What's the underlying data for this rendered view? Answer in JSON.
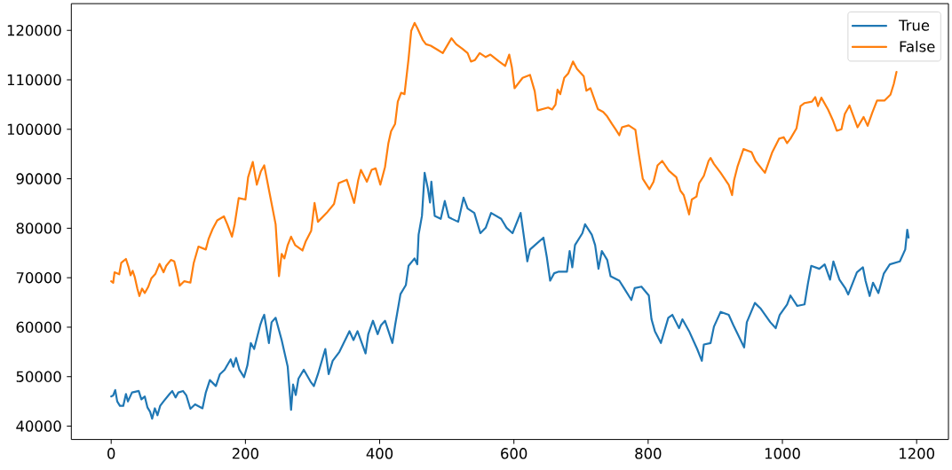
{
  "chart_data": {
    "type": "line",
    "series": [
      {
        "name": "True",
        "color": "#1f77b4",
        "x": [
          0,
          3,
          6,
          9,
          13,
          18,
          22,
          25,
          31,
          41,
          45,
          50,
          54,
          58,
          61,
          65,
          69,
          73,
          78,
          87,
          91,
          96,
          100,
          107,
          112,
          118,
          125,
          136,
          141,
          147,
          156,
          162,
          169,
          178,
          182,
          186,
          191,
          198,
          203,
          208,
          213,
          222,
          225,
          228,
          235,
          239,
          245,
          254,
          263,
          268,
          271,
          275,
          279,
          287,
          297,
          302,
          308,
          319,
          324,
          330,
          340,
          355,
          361,
          367,
          379,
          383,
          390,
          397,
          402,
          408,
          419,
          423,
          431,
          439,
          443,
          452,
          456,
          458,
          463,
          467,
          472,
          475,
          477,
          482,
          491,
          497,
          503,
          517,
          525,
          531,
          541,
          550,
          558,
          566,
          581,
          589,
          598,
          610,
          620,
          624,
          634,
          644,
          649,
          654,
          660,
          666,
          679,
          683,
          687,
          691,
          702,
          706,
          716,
          721,
          726,
          731,
          739,
          744,
          757,
          764,
          775,
          780,
          790,
          801,
          805,
          810,
          819,
          830,
          836,
          846,
          851,
          861,
          867,
          873,
          880,
          883,
          893,
          898,
          908,
          920,
          927,
          943,
          947,
          959,
          968,
          982,
          990,
          996,
          1007,
          1012,
          1022,
          1033,
          1038,
          1043,
          1055,
          1063,
          1071,
          1076,
          1082,
          1085,
          1094,
          1098,
          1111,
          1120,
          1124,
          1130,
          1135,
          1143,
          1151,
          1160,
          1175,
          1183,
          1186,
          1188
        ],
        "values": [
          46000,
          46200,
          47300,
          45000,
          44100,
          44100,
          46500,
          45000,
          46800,
          47100,
          45400,
          46000,
          43800,
          42900,
          41500,
          43600,
          42200,
          44100,
          45000,
          46500,
          47100,
          45800,
          46800,
          47100,
          46200,
          43500,
          44400,
          43600,
          46800,
          49300,
          48100,
          50500,
          51400,
          53500,
          52000,
          53800,
          51400,
          49900,
          52300,
          56800,
          55600,
          60400,
          61600,
          62500,
          56800,
          61000,
          61900,
          57400,
          52000,
          43300,
          48400,
          46300,
          49600,
          51400,
          49000,
          48100,
          50500,
          55600,
          50500,
          53200,
          55000,
          59200,
          57400,
          59200,
          54700,
          58600,
          61300,
          58600,
          60400,
          61300,
          56800,
          60400,
          66700,
          68500,
          72400,
          73900,
          72700,
          78700,
          82500,
          91200,
          87900,
          85200,
          89400,
          82500,
          81900,
          85500,
          82200,
          81300,
          86200,
          84000,
          83100,
          79000,
          80100,
          83100,
          81900,
          80100,
          79000,
          83100,
          73300,
          75700,
          76900,
          78100,
          74200,
          69400,
          70900,
          71200,
          71200,
          75400,
          72100,
          76600,
          79000,
          80800,
          78700,
          76600,
          71800,
          75400,
          73600,
          70300,
          69400,
          67900,
          65500,
          67900,
          68200,
          66400,
          61600,
          59200,
          56800,
          61900,
          62500,
          59800,
          61600,
          59200,
          57400,
          55600,
          53200,
          56500,
          56800,
          60100,
          63100,
          62500,
          60400,
          55900,
          61000,
          64900,
          63700,
          61000,
          59800,
          62500,
          64600,
          66400,
          64300,
          64600,
          68800,
          72400,
          71800,
          72700,
          69600,
          73300,
          70800,
          69600,
          67800,
          66600,
          71100,
          72100,
          69300,
          66300,
          69000,
          66900,
          70800,
          72700,
          73300,
          75700,
          79700,
          78100
        ]
      },
      {
        "name": "False",
        "color": "#ff7f0e",
        "x": [
          0,
          3,
          5,
          12,
          15,
          22,
          26,
          29,
          32,
          35,
          39,
          42,
          46,
          50,
          55,
          60,
          66,
          72,
          78,
          82,
          89,
          94,
          98,
          102,
          109,
          118,
          123,
          130,
          141,
          145,
          151,
          158,
          168,
          173,
          180,
          184,
          190,
          200,
          204,
          211,
          217,
          223,
          228,
          237,
          245,
          250,
          254,
          258,
          263,
          268,
          274,
          285,
          290,
          298,
          303,
          308,
          321,
          332,
          339,
          351,
          357,
          362,
          368,
          372,
          381,
          388,
          394,
          401,
          408,
          413,
          417,
          423,
          427,
          432,
          437,
          443,
          447,
          452,
          456,
          464,
          469,
          476,
          487,
          494,
          507,
          514,
          523,
          531,
          536,
          542,
          549,
          558,
          565,
          578,
          587,
          593,
          597,
          601,
          613,
          624,
          631,
          635,
          651,
          657,
          662,
          665,
          669,
          675,
          681,
          688,
          694,
          704,
          708,
          714,
          725,
          733,
          739,
          746,
          752,
          757,
          761,
          771,
          781,
          786,
          792,
          802,
          808,
          814,
          821,
          831,
          842,
          848,
          853,
          858,
          861,
          865,
          872,
          876,
          883,
          890,
          893,
          898,
          908,
          920,
          925,
          928,
          933,
          942,
          954,
          960,
          974,
          985,
          995,
          1002,
          1007,
          1012,
          1021,
          1027,
          1033,
          1044,
          1049,
          1053,
          1058,
          1068,
          1075,
          1081,
          1088,
          1093,
          1100,
          1112,
          1121,
          1127,
          1134,
          1141,
          1152,
          1161,
          1166,
          1170
        ],
        "values": [
          69300,
          69000,
          71100,
          70700,
          73000,
          73800,
          72100,
          70500,
          71400,
          70200,
          67800,
          66300,
          67800,
          66900,
          68100,
          69900,
          70800,
          72800,
          71100,
          72400,
          73600,
          73300,
          71100,
          68400,
          69300,
          69000,
          73000,
          76300,
          75700,
          77800,
          79800,
          81600,
          82400,
          80800,
          78300,
          80800,
          86100,
          85800,
          90300,
          93400,
          88800,
          91500,
          92700,
          86400,
          80800,
          70300,
          74800,
          73900,
          76600,
          78300,
          76600,
          75500,
          77400,
          79500,
          85100,
          81300,
          83100,
          84900,
          89100,
          89800,
          87300,
          85100,
          89700,
          91800,
          89400,
          91800,
          92100,
          88800,
          92400,
          97200,
          99600,
          101100,
          105600,
          107400,
          107100,
          114200,
          119900,
          121500,
          120500,
          118100,
          117200,
          116900,
          116000,
          115400,
          118400,
          117200,
          116300,
          115400,
          113700,
          114000,
          115400,
          114600,
          115100,
          113700,
          112800,
          115100,
          112500,
          108300,
          110400,
          111000,
          107700,
          103800,
          104400,
          104000,
          105000,
          108000,
          107100,
          110400,
          111300,
          113700,
          112200,
          110700,
          107800,
          108300,
          104100,
          103500,
          102600,
          101100,
          99900,
          98800,
          100400,
          100800,
          99900,
          95100,
          90000,
          87900,
          89400,
          92700,
          93600,
          91600,
          90300,
          87600,
          86700,
          84300,
          82800,
          85800,
          86400,
          89100,
          90600,
          93600,
          94200,
          93000,
          91200,
          88800,
          86700,
          89700,
          92400,
          96000,
          95400,
          93600,
          91200,
          95400,
          98100,
          98400,
          97200,
          98100,
          100200,
          104700,
          105300,
          105600,
          106500,
          104700,
          106400,
          104000,
          101900,
          99700,
          100000,
          103100,
          104800,
          100400,
          102500,
          100700,
          103400,
          105800,
          105800,
          107000,
          109200,
          111600
        ]
      }
    ],
    "xlim": [
      -59.4,
      1247.4
    ],
    "ylim": [
      37300,
      125400
    ],
    "xticks": [
      0,
      200,
      400,
      600,
      800,
      1000,
      1200
    ],
    "yticks": [
      40000,
      50000,
      60000,
      70000,
      80000,
      90000,
      100000,
      110000,
      120000
    ],
    "legend": "top right",
    "line_style": "solid"
  }
}
